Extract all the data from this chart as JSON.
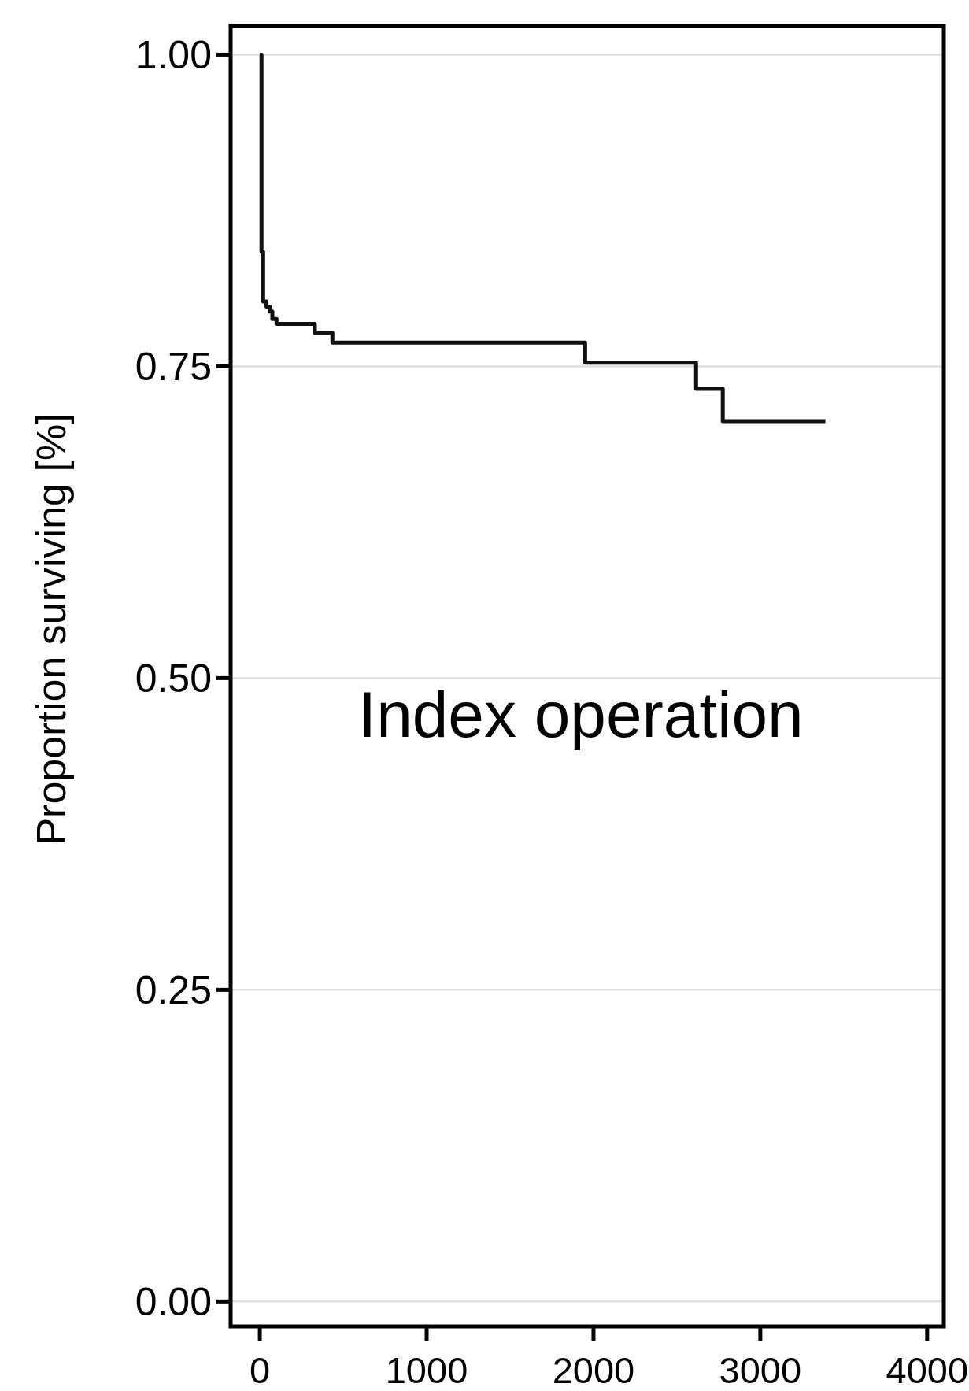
{
  "chart_data": {
    "type": "step",
    "ylabel": "Proportion surviving [%]",
    "annotations": [
      "Index operation"
    ],
    "x": [
      0,
      10,
      20,
      40,
      60,
      75,
      100,
      330,
      435,
      1950,
      2615,
      2775,
      3390
    ],
    "series": [
      {
        "color": "#111111",
        "values": [
          1,
          0.842,
          0.802,
          0.798,
          0.794,
          0.788,
          0.784,
          0.777,
          0.769,
          0.753,
          0.732,
          0.706,
          0.706
        ]
      }
    ],
    "xlim": [
      -175,
      4100
    ],
    "xticks": [
      0,
      1000,
      2000,
      3000,
      4000
    ],
    "ylim": [
      -0.02,
      1.023
    ],
    "yticks": [
      {
        "value": 0,
        "label": "0.00"
      },
      {
        "value": 0.25,
        "label": "0.25"
      },
      {
        "value": 0.5,
        "label": "0.50"
      },
      {
        "value": 0.75,
        "label": "0.75"
      },
      {
        "value": 1,
        "label": "1.00"
      }
    ],
    "grid": "y"
  }
}
